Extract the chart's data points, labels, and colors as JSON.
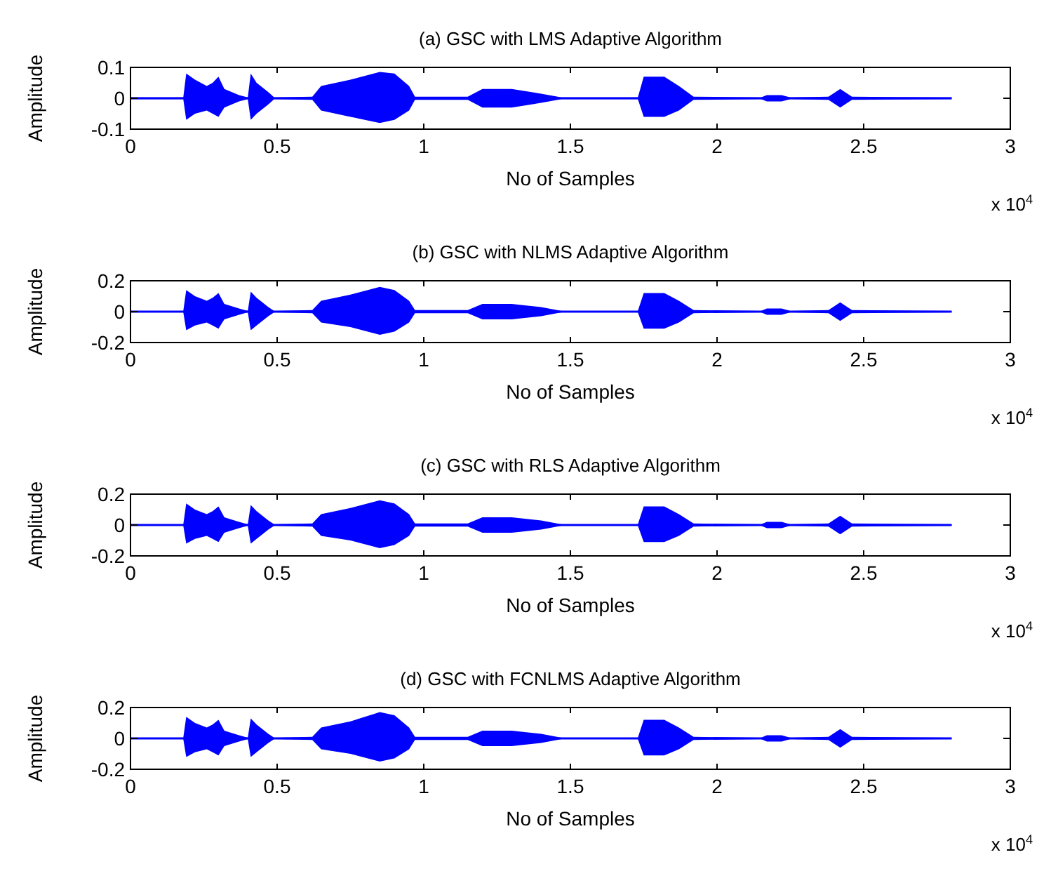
{
  "chart_data": [
    {
      "type": "line",
      "title": "(a) GSC with LMS Adaptive Algorithm",
      "xlabel": "No of Samples",
      "ylabel": "Amplitude",
      "annotations": [
        "x 10$^{4}$"
      ],
      "xlim": [
        0,
        3
      ],
      "xticks": [
        0,
        0.5,
        1,
        1.5,
        2,
        2.5,
        3
      ],
      "ylim": [
        -0.1,
        0.1
      ],
      "yticks": [
        -0.1,
        0,
        0.1
      ],
      "x": [
        0,
        0.18,
        0.19,
        0.22,
        0.26,
        0.28,
        0.3,
        0.32,
        0.37,
        0.4,
        0.41,
        0.43,
        0.47,
        0.49,
        0.62,
        0.65,
        0.75,
        0.85,
        0.9,
        0.95,
        0.97,
        1.15,
        1.2,
        1.3,
        1.4,
        1.47,
        1.73,
        1.75,
        1.82,
        1.87,
        1.92,
        2.15,
        2.17,
        2.22,
        2.25,
        2.38,
        2.42,
        2.46,
        2.8
      ],
      "series": [
        {
          "color": "#0000ff",
          "values": [
            0,
            0,
            0,
            0,
            0,
            0,
            0,
            0,
            0,
            0,
            0,
            0,
            0,
            0,
            0,
            0,
            0,
            0,
            0,
            0,
            0,
            0,
            0,
            0,
            0,
            0,
            0,
            0,
            0,
            0,
            0,
            0,
            0,
            0,
            0,
            0,
            0,
            0,
            0
          ],
          "upper": [
            0.003,
            0.003,
            0.08,
            0.06,
            0.04,
            0.05,
            0.07,
            0.03,
            0.01,
            0.003,
            0.08,
            0.05,
            0.02,
            0.003,
            0.005,
            0.04,
            0.06,
            0.085,
            0.08,
            0.04,
            0.005,
            0.005,
            0.03,
            0.03,
            0.015,
            0.003,
            0.003,
            0.07,
            0.07,
            0.04,
            0.005,
            0.003,
            0.01,
            0.01,
            0.003,
            0.005,
            0.03,
            0.005,
            0.003
          ],
          "lower": [
            -0.003,
            -0.003,
            -0.07,
            -0.05,
            -0.04,
            -0.05,
            -0.06,
            -0.03,
            -0.01,
            -0.003,
            -0.07,
            -0.05,
            -0.02,
            -0.003,
            -0.005,
            -0.04,
            -0.06,
            -0.08,
            -0.07,
            -0.04,
            -0.005,
            -0.005,
            -0.03,
            -0.03,
            -0.015,
            -0.003,
            -0.003,
            -0.06,
            -0.06,
            -0.04,
            -0.005,
            -0.003,
            -0.01,
            -0.01,
            -0.003,
            -0.005,
            -0.03,
            -0.005,
            -0.003
          ]
        }
      ]
    },
    {
      "type": "line",
      "title": "(b) GSC with NLMS Adaptive Algorithm",
      "xlabel": "No of Samples",
      "ylabel": "Amplitude",
      "annotations": [
        "x 10$^{4}$"
      ],
      "xlim": [
        0,
        3
      ],
      "xticks": [
        0,
        0.5,
        1,
        1.5,
        2,
        2.5,
        3
      ],
      "ylim": [
        -0.2,
        0.2
      ],
      "yticks": [
        -0.2,
        0,
        0.2
      ],
      "x": [
        0,
        0.18,
        0.19,
        0.22,
        0.26,
        0.28,
        0.3,
        0.32,
        0.37,
        0.4,
        0.41,
        0.43,
        0.47,
        0.49,
        0.62,
        0.65,
        0.75,
        0.85,
        0.9,
        0.95,
        0.97,
        1.15,
        1.2,
        1.3,
        1.4,
        1.47,
        1.73,
        1.75,
        1.82,
        1.87,
        1.92,
        2.15,
        2.17,
        2.22,
        2.25,
        2.38,
        2.42,
        2.46,
        2.8
      ],
      "series": [
        {
          "color": "#0000ff",
          "values": [
            0,
            0,
            0,
            0,
            0,
            0,
            0,
            0,
            0,
            0,
            0,
            0,
            0,
            0,
            0,
            0,
            0,
            0,
            0,
            0,
            0,
            0,
            0,
            0,
            0,
            0,
            0,
            0,
            0,
            0,
            0,
            0,
            0,
            0,
            0,
            0,
            0,
            0,
            0
          ],
          "upper": [
            0.005,
            0.005,
            0.14,
            0.1,
            0.07,
            0.09,
            0.12,
            0.05,
            0.02,
            0.005,
            0.13,
            0.09,
            0.03,
            0.005,
            0.01,
            0.07,
            0.11,
            0.16,
            0.14,
            0.07,
            0.01,
            0.01,
            0.05,
            0.05,
            0.03,
            0.005,
            0.005,
            0.12,
            0.12,
            0.07,
            0.01,
            0.005,
            0.02,
            0.02,
            0.005,
            0.01,
            0.06,
            0.01,
            0.005
          ],
          "lower": [
            -0.005,
            -0.005,
            -0.12,
            -0.09,
            -0.07,
            -0.09,
            -0.11,
            -0.05,
            -0.02,
            -0.005,
            -0.12,
            -0.09,
            -0.03,
            -0.005,
            -0.01,
            -0.07,
            -0.1,
            -0.15,
            -0.13,
            -0.07,
            -0.01,
            -0.01,
            -0.05,
            -0.05,
            -0.03,
            -0.005,
            -0.005,
            -0.11,
            -0.11,
            -0.07,
            -0.01,
            -0.005,
            -0.02,
            -0.02,
            -0.005,
            -0.01,
            -0.06,
            -0.01,
            -0.005
          ]
        }
      ]
    },
    {
      "type": "line",
      "title": "(c)  GSC with RLS Adaptive Algorithm",
      "xlabel": "No of Samples",
      "ylabel": "Amplitude",
      "annotations": [
        "x 10$^{4}$"
      ],
      "xlim": [
        0,
        3
      ],
      "xticks": [
        0,
        0.5,
        1,
        1.5,
        2,
        2.5,
        3
      ],
      "ylim": [
        -0.2,
        0.2
      ],
      "yticks": [
        -0.2,
        0,
        0.2
      ],
      "x": [
        0,
        0.18,
        0.19,
        0.22,
        0.26,
        0.28,
        0.3,
        0.32,
        0.37,
        0.4,
        0.41,
        0.43,
        0.47,
        0.49,
        0.62,
        0.65,
        0.75,
        0.85,
        0.9,
        0.95,
        0.97,
        1.15,
        1.2,
        1.3,
        1.4,
        1.47,
        1.73,
        1.75,
        1.82,
        1.87,
        1.92,
        2.15,
        2.17,
        2.22,
        2.25,
        2.38,
        2.42,
        2.46,
        2.8
      ],
      "series": [
        {
          "color": "#0000ff",
          "values": [
            0,
            0,
            0,
            0,
            0,
            0,
            0,
            0,
            0,
            0,
            0,
            0,
            0,
            0,
            0,
            0,
            0,
            0,
            0,
            0,
            0,
            0,
            0,
            0,
            0,
            0,
            0,
            0,
            0,
            0,
            0,
            0,
            0,
            0,
            0,
            0,
            0,
            0,
            0
          ],
          "upper": [
            0.005,
            0.005,
            0.14,
            0.1,
            0.07,
            0.09,
            0.12,
            0.05,
            0.02,
            0.005,
            0.13,
            0.09,
            0.03,
            0.005,
            0.01,
            0.07,
            0.11,
            0.16,
            0.14,
            0.07,
            0.01,
            0.01,
            0.05,
            0.05,
            0.03,
            0.005,
            0.005,
            0.12,
            0.12,
            0.07,
            0.01,
            0.005,
            0.02,
            0.02,
            0.005,
            0.01,
            0.06,
            0.01,
            0.005
          ],
          "lower": [
            -0.005,
            -0.005,
            -0.12,
            -0.09,
            -0.07,
            -0.09,
            -0.11,
            -0.05,
            -0.02,
            -0.005,
            -0.12,
            -0.09,
            -0.03,
            -0.005,
            -0.01,
            -0.07,
            -0.1,
            -0.15,
            -0.13,
            -0.07,
            -0.01,
            -0.01,
            -0.05,
            -0.05,
            -0.03,
            -0.005,
            -0.005,
            -0.11,
            -0.11,
            -0.07,
            -0.01,
            -0.005,
            -0.02,
            -0.02,
            -0.005,
            -0.01,
            -0.06,
            -0.01,
            -0.005
          ]
        }
      ]
    },
    {
      "type": "line",
      "title": "(d)  GSC with FCNLMS Adaptive Algorithm",
      "xlabel": "No of Samples",
      "ylabel": "Amplitude",
      "annotations": [
        "x 10$^{4}$"
      ],
      "xlim": [
        0,
        3
      ],
      "xticks": [
        0,
        0.5,
        1,
        1.5,
        2,
        2.5,
        3
      ],
      "ylim": [
        -0.2,
        0.2
      ],
      "yticks": [
        -0.2,
        0,
        0.2
      ],
      "x": [
        0,
        0.18,
        0.19,
        0.22,
        0.26,
        0.28,
        0.3,
        0.32,
        0.37,
        0.4,
        0.41,
        0.43,
        0.47,
        0.49,
        0.62,
        0.65,
        0.75,
        0.85,
        0.9,
        0.95,
        0.97,
        1.15,
        1.2,
        1.3,
        1.4,
        1.47,
        1.73,
        1.75,
        1.82,
        1.87,
        1.92,
        2.15,
        2.17,
        2.22,
        2.25,
        2.38,
        2.42,
        2.46,
        2.8
      ],
      "series": [
        {
          "color": "#0000ff",
          "values": [
            0,
            0,
            0,
            0,
            0,
            0,
            0,
            0,
            0,
            0,
            0,
            0,
            0,
            0,
            0,
            0,
            0,
            0,
            0,
            0,
            0,
            0,
            0,
            0,
            0,
            0,
            0,
            0,
            0,
            0,
            0,
            0,
            0,
            0,
            0,
            0,
            0,
            0,
            0
          ],
          "upper": [
            0.005,
            0.005,
            0.14,
            0.1,
            0.07,
            0.09,
            0.12,
            0.05,
            0.02,
            0.005,
            0.13,
            0.09,
            0.03,
            0.005,
            0.01,
            0.07,
            0.11,
            0.17,
            0.15,
            0.07,
            0.01,
            0.01,
            0.05,
            0.05,
            0.03,
            0.005,
            0.005,
            0.12,
            0.12,
            0.07,
            0.01,
            0.005,
            0.02,
            0.02,
            0.005,
            0.01,
            0.06,
            0.01,
            0.005
          ],
          "lower": [
            -0.005,
            -0.005,
            -0.12,
            -0.09,
            -0.07,
            -0.09,
            -0.11,
            -0.05,
            -0.02,
            -0.005,
            -0.12,
            -0.09,
            -0.03,
            -0.005,
            -0.01,
            -0.07,
            -0.1,
            -0.15,
            -0.13,
            -0.07,
            -0.01,
            -0.01,
            -0.05,
            -0.05,
            -0.03,
            -0.005,
            -0.005,
            -0.11,
            -0.11,
            -0.07,
            -0.01,
            -0.005,
            -0.02,
            -0.02,
            -0.005,
            -0.01,
            -0.06,
            -0.01,
            -0.005
          ]
        }
      ]
    }
  ]
}
